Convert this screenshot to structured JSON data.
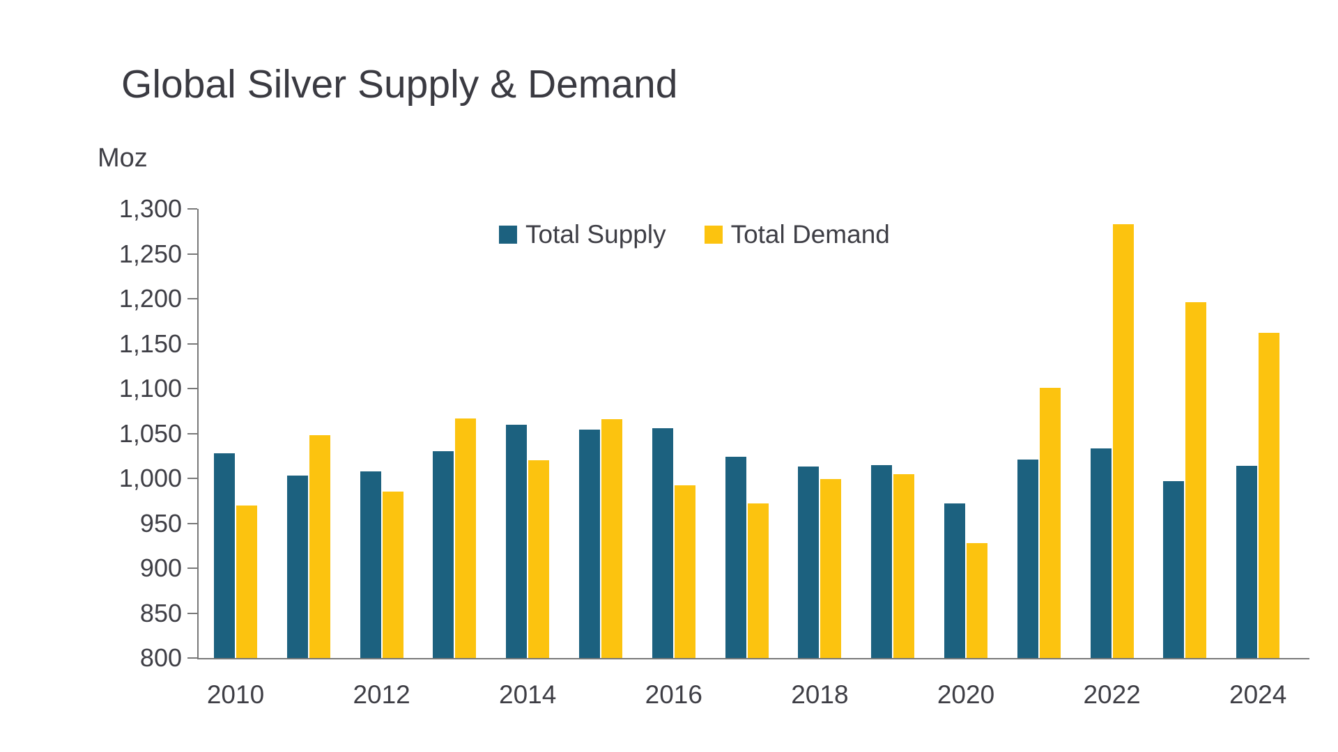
{
  "title": "Global Silver Supply & Demand",
  "unit_label": "Moz",
  "legend": [
    {
      "label": "Total Supply",
      "color": "#1c617f"
    },
    {
      "label": "Total Demand",
      "color": "#fcc30f"
    }
  ],
  "axis": {
    "line_color": "#787878",
    "text_color": "#3e3e45"
  },
  "chart_data": {
    "type": "bar",
    "title": "Global Silver Supply & Demand",
    "ylabel": "Moz",
    "categories": [
      2010,
      2011,
      2012,
      2013,
      2014,
      2015,
      2016,
      2017,
      2018,
      2019,
      2020,
      2021,
      2022,
      2023,
      2024
    ],
    "series": [
      {
        "name": "Total Supply",
        "color": "#1c617f",
        "values": [
          1028,
          1003,
          1008,
          1030,
          1060,
          1054,
          1056,
          1024,
          1013,
          1015,
          972,
          1021,
          1033,
          997,
          1014
        ]
      },
      {
        "name": "Total Demand",
        "color": "#fcc30f",
        "values": [
          970,
          1048,
          985,
          1067,
          1020,
          1066,
          992,
          972,
          999,
          1005,
          928,
          1101,
          1283,
          1196,
          1162
        ]
      }
    ],
    "ylim": [
      800,
      1300
    ],
    "ytick_step": 50,
    "ytick_labels": [
      "800",
      "850",
      "900",
      "950",
      "1,000",
      "1,050",
      "1,100",
      "1,150",
      "1,200",
      "1,250",
      "1,300"
    ],
    "xtick_labels": [
      "2010",
      "2012",
      "2014",
      "2016",
      "2018",
      "2020",
      "2022",
      "2024"
    ],
    "grid": false,
    "legend_position": "top-center"
  }
}
